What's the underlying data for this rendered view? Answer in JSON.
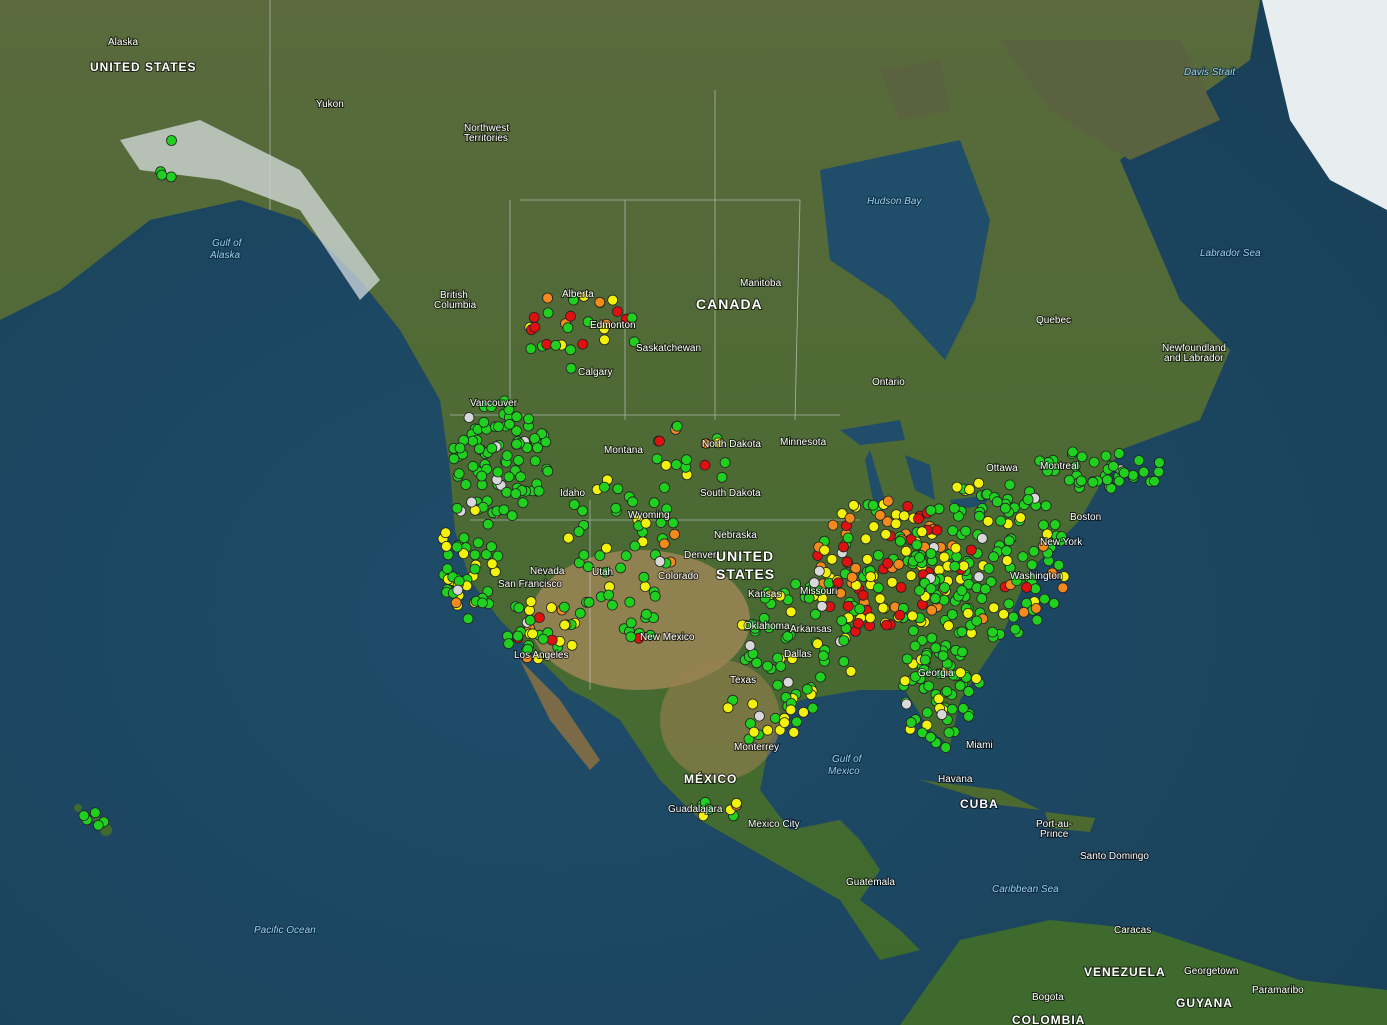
{
  "map": {
    "labels": [
      "Alaska",
      "UNITED STATES",
      "Yukon",
      "Northwest",
      "Territories",
      "Davis Strait",
      "Gulf of",
      "Alaska",
      "Hudson Bay",
      "Labrador Sea",
      "Manitoba",
      "CANADA",
      "British",
      "Columbia",
      "Alberta",
      "Edmonton",
      "Saskatchewan",
      "Calgary",
      "Ontario",
      "Quebec",
      "Newfoundland",
      "and Labrador",
      "Vancouver",
      "Montana",
      "North Dakota",
      "Minnesota",
      "Ottawa",
      "Montreal",
      "South Dakota",
      "Idaho",
      "Wyoming",
      "Nebraska",
      "Boston",
      "New York",
      "UNITED",
      "STATES",
      "Nevada",
      "San Francisco",
      "Utah",
      "Colorado",
      "Denver",
      "Kansas",
      "Missouri",
      "Washington",
      "Oklahoma",
      "Arkansas",
      "New Mexico",
      "Los Angeles",
      "Texas",
      "Dallas",
      "Georgia",
      "Miami",
      "Monterrey",
      "Gulf of",
      "Mexico",
      "MÉXICO",
      "Havana",
      "CUBA",
      "Guadalajara",
      "Mexico City",
      "Port-au-",
      "Prince",
      "Santo Domingo",
      "Guatemala",
      "Caribbean Sea",
      "Pacific Ocean",
      "Caracas",
      "VENEZUELA",
      "Georgetown",
      "Paramaribo",
      "Bogota",
      "GUYANA",
      "COLOMBIA"
    ]
  }
}
